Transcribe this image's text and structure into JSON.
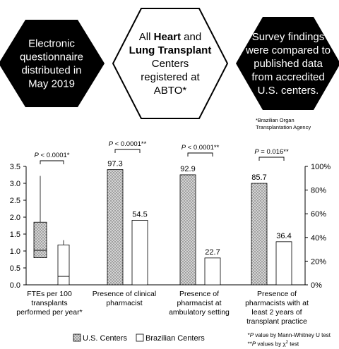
{
  "hexagons": [
    {
      "lines": [
        "Electronic",
        "questionnaire",
        "distributed in",
        "May 2019"
      ],
      "style": "dark"
    },
    {
      "lines_rich": [
        [
          {
            "t": "All ",
            "b": false
          },
          {
            "t": "Heart",
            "b": true
          },
          {
            "t": " and",
            "b": false
          }
        ],
        [
          {
            "t": "Lung Transplant",
            "b": true
          }
        ],
        [
          {
            "t": "Centers",
            "b": false
          }
        ],
        [
          {
            "t": "registered at",
            "b": false
          }
        ],
        [
          {
            "t": "ABTO*",
            "b": false
          }
        ]
      ],
      "style": "light"
    },
    {
      "lines": [
        "Survey findings",
        "were compared to",
        "published data",
        "from accredited",
        "U.S. centers."
      ],
      "style": "dark"
    }
  ],
  "abto_footnote": [
    "*Brazilian Organ",
    "Transplantation Agency"
  ],
  "chart_data": {
    "type": "bar",
    "left_axis": {
      "ticks": [
        "0.0",
        "0.5",
        "1.0",
        "1.5",
        "2.0",
        "2.5",
        "3.0",
        "3.5"
      ],
      "range": [
        0,
        3.5
      ]
    },
    "right_axis": {
      "ticks": [
        "0%",
        "20%",
        "40%",
        "60%",
        "80%",
        "100%"
      ],
      "range": [
        0,
        100
      ]
    },
    "boxplot": {
      "category": [
        "FTEs per 100",
        "transplants",
        "performed per year*"
      ],
      "pvalue": "P < 0.0001*",
      "us": {
        "whisker_low": 0.8,
        "q1": 0.8,
        "median": 1.02,
        "q3": 1.85,
        "whisker_high": 3.22
      },
      "brazil": {
        "whisker_low": 0.0,
        "q1": 0.0,
        "median": 0.25,
        "q3": 1.18,
        "whisker_high": 1.32
      }
    },
    "categories": [
      {
        "label": [
          "Presence of clinical",
          "pharmacist"
        ],
        "pvalue": "P < 0.0001**",
        "us": 97.3,
        "brazil": 54.5,
        "us_label": "97.3",
        "brazil_label": "54.5"
      },
      {
        "label": [
          "Presence of",
          "pharmacist at",
          "ambulatory setting"
        ],
        "pvalue": "P < 0.0001**",
        "us": 92.9,
        "brazil": 22.7,
        "us_label": "92.9",
        "brazil_label": "22.7"
      },
      {
        "label": [
          "Presence of",
          "pharmacists with at",
          "least 2 years of",
          "transplant practice"
        ],
        "pvalue": "P = 0.016**",
        "us": 85.7,
        "brazil": 36.4,
        "us_label": "85.7",
        "brazil_label": "36.4"
      }
    ],
    "legend": {
      "us": "U.S. Centers",
      "brazil": "Brazilian Centers",
      "placement": "bottom-left"
    },
    "colors": {
      "us_fill": "#c8c8c8",
      "brazil_fill": "#ffffff",
      "stroke": "#000000",
      "hex_dark": "#000000"
    }
  },
  "notes": {
    "mann_whitney": {
      "prefix": "*",
      "p": "P",
      "text": " value by Mann-Whitney U test"
    },
    "chi2": {
      "prefix": "**",
      "p": "P",
      "text": " values by χ",
      "sup": "2",
      "suffix": " test"
    }
  }
}
